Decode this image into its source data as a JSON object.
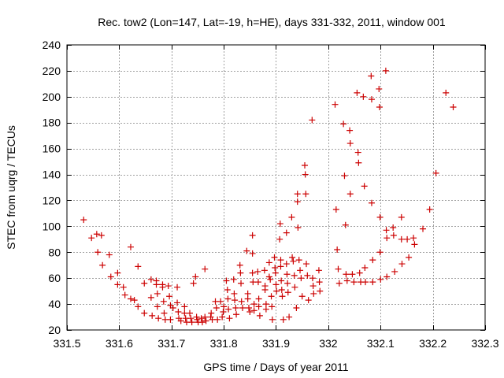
{
  "chart_data": {
    "type": "scatter",
    "title": "Rec. tow2 (Lon=147, Lat=-19, h=HE), days 331-332, 2011, window 001",
    "xlabel": "GPS time / Days of year 2011",
    "ylabel": "STEC from uqrg / TECUs",
    "xlim": [
      331.5,
      332.3
    ],
    "ylim": [
      20,
      240
    ],
    "xticks": [
      331.5,
      331.6,
      331.7,
      331.8,
      331.9,
      332.0,
      332.1,
      332.2,
      332.3
    ],
    "xtick_labels": [
      "331.5",
      "331.6",
      "331.7",
      "331.8",
      "331.9",
      "332",
      "332.1",
      "332.2",
      "332.3"
    ],
    "yticks": [
      20,
      40,
      60,
      80,
      100,
      120,
      140,
      160,
      180,
      200,
      220,
      240
    ],
    "ytick_labels": [
      "20",
      "40",
      "60",
      "80",
      "100",
      "120",
      "140",
      "160",
      "180",
      "200",
      "220",
      "240"
    ],
    "grid": true,
    "marker": "plus",
    "color": "#cc0000",
    "points": [
      [
        331.532,
        105
      ],
      [
        331.547,
        91
      ],
      [
        331.557,
        94
      ],
      [
        331.559,
        80
      ],
      [
        331.566,
        93
      ],
      [
        331.568,
        70
      ],
      [
        331.581,
        78
      ],
      [
        331.584,
        61
      ],
      [
        331.597,
        64
      ],
      [
        331.597,
        55
      ],
      [
        331.608,
        53
      ],
      [
        331.611,
        47
      ],
      [
        331.622,
        84
      ],
      [
        331.622,
        44
      ],
      [
        331.629,
        43
      ],
      [
        331.636,
        69
      ],
      [
        331.636,
        38
      ],
      [
        331.648,
        56
      ],
      [
        331.648,
        33
      ],
      [
        331.661,
        59
      ],
      [
        331.661,
        45
      ],
      [
        331.663,
        31
      ],
      [
        331.671,
        58
      ],
      [
        331.671,
        55
      ],
      [
        331.673,
        48
      ],
      [
        331.673,
        38
      ],
      [
        331.675,
        29
      ],
      [
        331.683,
        55
      ],
      [
        331.683,
        53
      ],
      [
        331.685,
        42
      ],
      [
        331.686,
        33
      ],
      [
        331.688,
        28
      ],
      [
        331.694,
        54
      ],
      [
        331.696,
        46
      ],
      [
        331.698,
        39
      ],
      [
        331.698,
        28
      ],
      [
        331.703,
        37
      ],
      [
        331.711,
        53
      ],
      [
        331.711,
        41
      ],
      [
        331.713,
        34
      ],
      [
        331.714,
        29
      ],
      [
        331.718,
        27
      ],
      [
        331.725,
        38
      ],
      [
        331.725,
        33
      ],
      [
        331.727,
        29
      ],
      [
        331.729,
        26
      ],
      [
        331.735,
        33
      ],
      [
        331.737,
        29
      ],
      [
        331.739,
        26
      ],
      [
        331.742,
        56
      ],
      [
        331.746,
        61
      ],
      [
        331.748,
        30
      ],
      [
        331.749,
        28
      ],
      [
        331.751,
        26
      ],
      [
        331.757,
        29
      ],
      [
        331.759,
        26
      ],
      [
        331.764,
        67
      ],
      [
        331.764,
        30
      ],
      [
        331.766,
        27
      ],
      [
        331.775,
        30
      ],
      [
        331.776,
        33
      ],
      [
        331.778,
        28
      ],
      [
        331.784,
        42
      ],
      [
        331.786,
        37
      ],
      [
        331.788,
        28
      ],
      [
        331.794,
        42
      ],
      [
        331.797,
        30
      ],
      [
        331.799,
        34
      ],
      [
        331.8,
        38
      ],
      [
        331.805,
        58
      ],
      [
        331.807,
        51
      ],
      [
        331.808,
        44
      ],
      [
        331.809,
        36
      ],
      [
        331.811,
        29
      ],
      [
        331.819,
        59
      ],
      [
        331.82,
        48
      ],
      [
        331.821,
        43
      ],
      [
        331.823,
        37
      ],
      [
        331.824,
        32
      ],
      [
        331.831,
        70
      ],
      [
        331.832,
        64
      ],
      [
        331.833,
        56
      ],
      [
        331.834,
        42
      ],
      [
        331.836,
        37
      ],
      [
        331.844,
        81
      ],
      [
        331.846,
        48
      ],
      [
        331.846,
        44
      ],
      [
        331.848,
        37
      ],
      [
        331.85,
        34
      ],
      [
        331.855,
        93
      ],
      [
        331.855,
        79
      ],
      [
        331.855,
        64
      ],
      [
        331.856,
        57
      ],
      [
        331.858,
        40
      ],
      [
        331.858,
        35
      ],
      [
        331.865,
        65
      ],
      [
        331.866,
        57
      ],
      [
        331.867,
        44
      ],
      [
        331.867,
        38
      ],
      [
        331.869,
        31
      ],
      [
        331.878,
        66
      ],
      [
        331.879,
        54
      ],
      [
        331.879,
        51
      ],
      [
        331.881,
        40
      ],
      [
        331.881,
        36
      ],
      [
        331.887,
        72
      ],
      [
        331.887,
        61
      ],
      [
        331.889,
        59
      ],
      [
        331.891,
        46
      ],
      [
        331.892,
        38
      ],
      [
        331.893,
        28
      ],
      [
        331.897,
        76
      ],
      [
        331.898,
        68
      ],
      [
        331.899,
        64
      ],
      [
        331.9,
        55
      ],
      [
        331.901,
        50
      ],
      [
        331.907,
        90
      ],
      [
        331.908,
        102
      ],
      [
        331.909,
        74
      ],
      [
        331.909,
        69
      ],
      [
        331.91,
        58
      ],
      [
        331.911,
        51
      ],
      [
        331.912,
        46
      ],
      [
        331.914,
        28
      ],
      [
        331.92,
        95
      ],
      [
        331.92,
        71
      ],
      [
        331.921,
        63
      ],
      [
        331.922,
        56
      ],
      [
        331.923,
        49
      ],
      [
        331.925,
        30
      ],
      [
        331.93,
        107
      ],
      [
        331.931,
        76
      ],
      [
        331.933,
        73
      ],
      [
        331.935,
        62
      ],
      [
        331.936,
        53
      ],
      [
        331.939,
        37
      ],
      [
        331.941,
        125
      ],
      [
        331.941,
        119
      ],
      [
        331.942,
        99
      ],
      [
        331.944,
        74
      ],
      [
        331.946,
        66
      ],
      [
        331.948,
        60
      ],
      [
        331.95,
        46
      ],
      [
        331.955,
        147
      ],
      [
        331.956,
        140
      ],
      [
        331.957,
        125
      ],
      [
        331.958,
        71
      ],
      [
        331.96,
        62
      ],
      [
        331.962,
        43
      ],
      [
        331.969,
        182
      ],
      [
        331.97,
        60
      ],
      [
        331.971,
        54
      ],
      [
        331.972,
        48
      ],
      [
        331.982,
        66
      ],
      [
        331.983,
        57
      ],
      [
        331.984,
        50
      ],
      [
        332.013,
        194
      ],
      [
        332.015,
        113
      ],
      [
        332.017,
        82
      ],
      [
        332.019,
        67
      ],
      [
        332.021,
        56
      ],
      [
        332.029,
        179
      ],
      [
        332.031,
        139
      ],
      [
        332.033,
        101
      ],
      [
        332.034,
        63
      ],
      [
        332.036,
        58
      ],
      [
        332.041,
        174
      ],
      [
        332.042,
        164
      ],
      [
        332.042,
        125
      ],
      [
        332.046,
        63
      ],
      [
        332.049,
        57
      ],
      [
        332.055,
        203
      ],
      [
        332.057,
        157
      ],
      [
        332.058,
        149
      ],
      [
        332.06,
        64
      ],
      [
        332.062,
        57
      ],
      [
        332.067,
        200
      ],
      [
        332.069,
        131
      ],
      [
        332.07,
        68
      ],
      [
        332.071,
        57
      ],
      [
        332.082,
        216
      ],
      [
        332.083,
        198
      ],
      [
        332.083,
        118
      ],
      [
        332.085,
        74
      ],
      [
        332.085,
        57
      ],
      [
        332.097,
        206
      ],
      [
        332.098,
        192
      ],
      [
        332.099,
        107
      ],
      [
        332.099,
        80
      ],
      [
        332.1,
        59
      ],
      [
        332.11,
        220
      ],
      [
        332.111,
        97
      ],
      [
        332.112,
        91
      ],
      [
        332.112,
        61
      ],
      [
        332.124,
        99
      ],
      [
        332.125,
        93
      ],
      [
        332.127,
        65
      ],
      [
        332.14,
        107
      ],
      [
        332.14,
        90
      ],
      [
        332.141,
        71
      ],
      [
        332.151,
        90
      ],
      [
        332.154,
        76
      ],
      [
        332.163,
        91
      ],
      [
        332.165,
        86
      ],
      [
        332.181,
        98
      ],
      [
        332.194,
        113
      ],
      [
        332.206,
        141
      ],
      [
        332.225,
        203
      ],
      [
        332.239,
        192
      ]
    ]
  }
}
